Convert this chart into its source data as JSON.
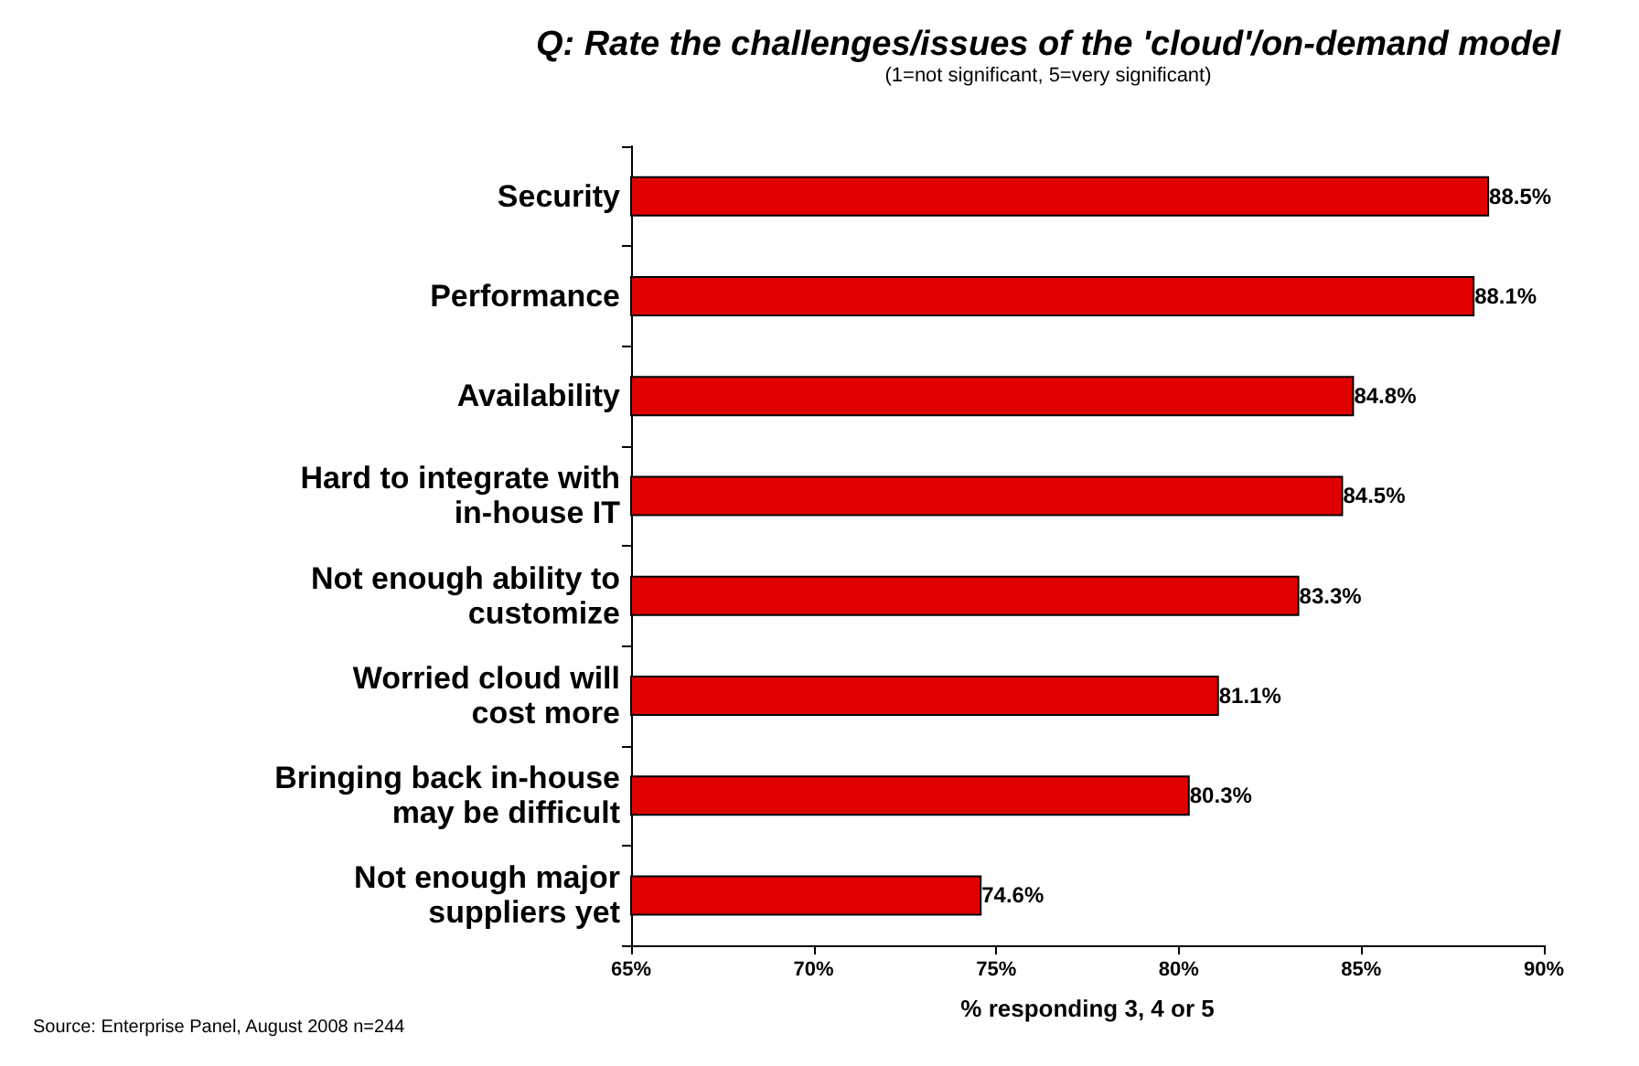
{
  "chart_data": {
    "type": "bar",
    "orientation": "horizontal",
    "title": "Q: Rate the challenges/issues of the 'cloud'/on-demand model",
    "subtitle": "(1=not significant, 5=very significant)",
    "xlabel": "% responding 3, 4 or 5",
    "categories": [
      "Security",
      "Performance",
      "Availability",
      "Hard to integrate with\nin-house IT",
      "Not enough ability to\ncustomize",
      "Worried cloud will\ncost more",
      "Bringing back in-house\nmay be difficult",
      "Not enough major\nsuppliers yet"
    ],
    "values": [
      88.5,
      88.1,
      84.8,
      84.5,
      83.3,
      81.1,
      80.3,
      74.6
    ],
    "value_labels": [
      "88.5%",
      "88.1%",
      "84.8%",
      "84.5%",
      "83.3%",
      "81.1%",
      "80.3%",
      "74.6%"
    ],
    "color": "#e00000",
    "xlim": [
      65,
      90
    ],
    "xticks": [
      {
        "value": 65,
        "label": "65%"
      },
      {
        "value": 70,
        "label": "70%"
      },
      {
        "value": 75,
        "label": "75%"
      },
      {
        "value": 80,
        "label": "80%"
      },
      {
        "value": 85,
        "label": "85%"
      },
      {
        "value": 90,
        "label": "90%"
      }
    ],
    "grid": false,
    "annotations": [
      "Source: Enterprise Panel, August 2008 n=244"
    ]
  }
}
